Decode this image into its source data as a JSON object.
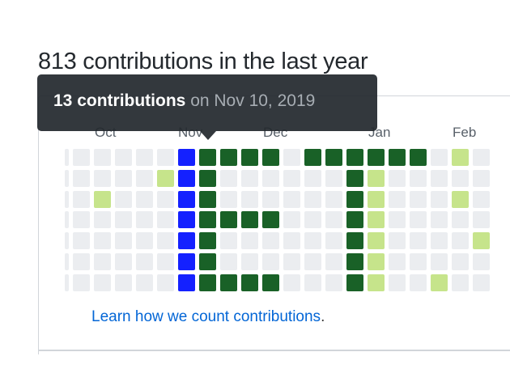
{
  "heading": "813 contributions in the last year",
  "months": [
    "Oct",
    "Nov",
    "Dec",
    "Jan",
    "Feb"
  ],
  "tooltip": {
    "count": "13 contributions",
    "date": "on Nov 10, 2019"
  },
  "learn_link": "Learn how we count contributions",
  "learn_suffix": ".",
  "colors": {
    "level_0": "#ebedf0",
    "level_1": "#c6e48b",
    "level_4": "#196127",
    "selected": "#1421ff",
    "link": "#0366d6"
  },
  "contribution_levels": [
    [
      0,
      0,
      0,
      0,
      0,
      0,
      0
    ],
    [
      0,
      0,
      0,
      0,
      0,
      0,
      0
    ],
    [
      0,
      0,
      1,
      0,
      0,
      0,
      0
    ],
    [
      0,
      0,
      0,
      0,
      0,
      0,
      0
    ],
    [
      0,
      0,
      0,
      0,
      0,
      0,
      0
    ],
    [
      0,
      1,
      0,
      0,
      0,
      0,
      0
    ],
    [
      "sel",
      "sel",
      "sel",
      "sel",
      "sel",
      "sel",
      "sel"
    ],
    [
      4,
      4,
      4,
      4,
      4,
      4,
      4
    ],
    [
      4,
      0,
      0,
      4,
      0,
      0,
      4
    ],
    [
      4,
      0,
      0,
      4,
      0,
      0,
      4
    ],
    [
      4,
      0,
      0,
      4,
      0,
      0,
      4
    ],
    [
      0,
      0,
      0,
      0,
      0,
      0,
      0
    ],
    [
      4,
      0,
      0,
      0,
      0,
      0,
      0
    ],
    [
      4,
      0,
      0,
      0,
      0,
      0,
      0
    ],
    [
      4,
      4,
      4,
      4,
      4,
      4,
      4
    ],
    [
      4,
      1,
      1,
      1,
      1,
      1,
      1
    ],
    [
      4,
      0,
      0,
      0,
      0,
      0,
      0
    ],
    [
      4,
      0,
      0,
      0,
      0,
      0,
      0
    ],
    [
      0,
      0,
      0,
      0,
      0,
      0,
      1
    ],
    [
      1,
      0,
      1,
      0,
      0,
      0,
      0
    ],
    [
      0,
      0,
      0,
      0,
      1,
      0,
      0
    ]
  ]
}
